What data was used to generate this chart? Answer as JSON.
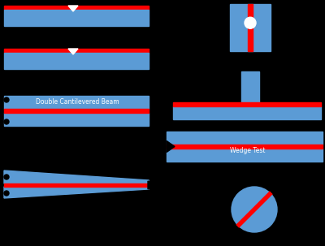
{
  "bg_color": "#000000",
  "blue": "#5B9BD5",
  "red": "#FF0000",
  "white": "#FFFFFF",
  "black": "#000000",
  "label_color": "#FFFFFF",
  "label_color2": "#AED6F1"
}
